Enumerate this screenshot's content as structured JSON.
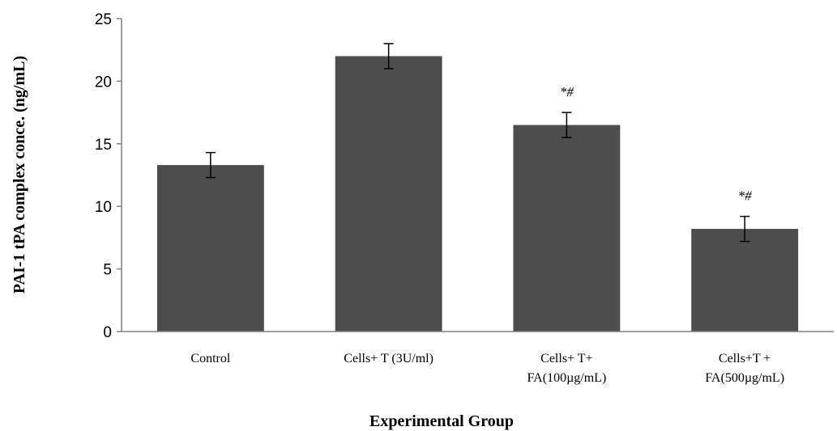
{
  "chart_data": {
    "type": "bar",
    "title": "",
    "xlabel": "Experimental Group",
    "ylabel": "PAI-1 tPA complex conce. (ng/mL)",
    "ylim": [
      0,
      25
    ],
    "yticks": [
      0,
      5,
      10,
      15,
      20,
      25
    ],
    "grid": false,
    "legend": "none",
    "bar_color": "#4d4d4d",
    "categories": [
      [
        "Control"
      ],
      [
        "Cells+  T (3U/ml)"
      ],
      [
        "Cells+ T+",
        "FA(100µg/mL)"
      ],
      [
        "Cells+T +",
        "FA(500µg/mL)"
      ]
    ],
    "values": [
      13.3,
      22.0,
      16.5,
      8.2
    ],
    "error": [
      1.0,
      1.0,
      1.0,
      1.0
    ],
    "annotations": [
      "",
      "",
      "*#",
      "*#"
    ]
  }
}
